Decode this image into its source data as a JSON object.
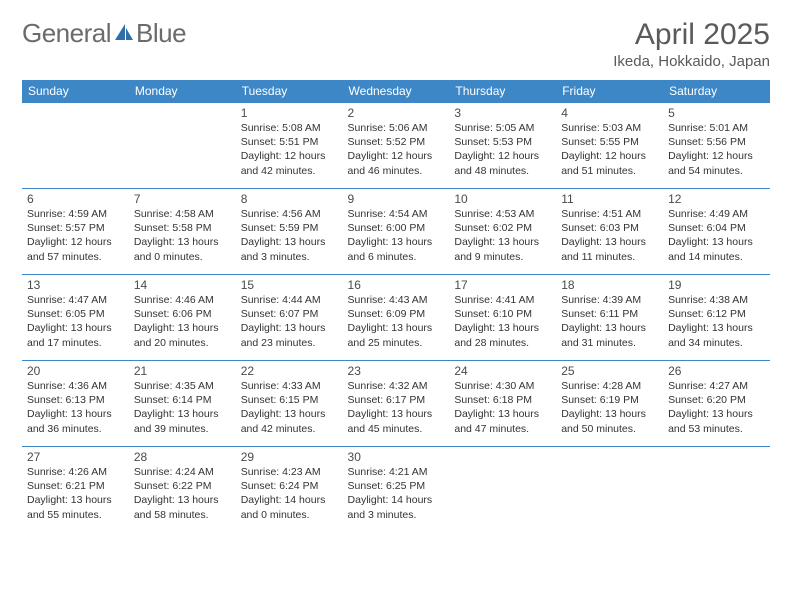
{
  "logo": {
    "text_a": "General",
    "text_b": "Blue"
  },
  "title": "April 2025",
  "location": "Ikeda, Hokkaido, Japan",
  "colors": {
    "header_bg": "#3d87c7",
    "header_text": "#ffffff",
    "row_border": "#3d87c7",
    "body_text": "#333333",
    "title_text": "#5a5a5a",
    "logo_text": "#6b6b6b",
    "sail_color": "#2f6fa8",
    "background": "#ffffff"
  },
  "typography": {
    "title_fontsize": 30,
    "location_fontsize": 15,
    "daynum_fontsize": 12,
    "cell_fontsize": 10.5,
    "header_fontsize": 12,
    "logo_fontsize": 26
  },
  "weekdays": [
    "Sunday",
    "Monday",
    "Tuesday",
    "Wednesday",
    "Thursday",
    "Friday",
    "Saturday"
  ],
  "weeks": [
    [
      null,
      null,
      {
        "n": "1",
        "sr": "Sunrise: 5:08 AM",
        "ss": "Sunset: 5:51 PM",
        "d1": "Daylight: 12 hours",
        "d2": "and 42 minutes."
      },
      {
        "n": "2",
        "sr": "Sunrise: 5:06 AM",
        "ss": "Sunset: 5:52 PM",
        "d1": "Daylight: 12 hours",
        "d2": "and 46 minutes."
      },
      {
        "n": "3",
        "sr": "Sunrise: 5:05 AM",
        "ss": "Sunset: 5:53 PM",
        "d1": "Daylight: 12 hours",
        "d2": "and 48 minutes."
      },
      {
        "n": "4",
        "sr": "Sunrise: 5:03 AM",
        "ss": "Sunset: 5:55 PM",
        "d1": "Daylight: 12 hours",
        "d2": "and 51 minutes."
      },
      {
        "n": "5",
        "sr": "Sunrise: 5:01 AM",
        "ss": "Sunset: 5:56 PM",
        "d1": "Daylight: 12 hours",
        "d2": "and 54 minutes."
      }
    ],
    [
      {
        "n": "6",
        "sr": "Sunrise: 4:59 AM",
        "ss": "Sunset: 5:57 PM",
        "d1": "Daylight: 12 hours",
        "d2": "and 57 minutes."
      },
      {
        "n": "7",
        "sr": "Sunrise: 4:58 AM",
        "ss": "Sunset: 5:58 PM",
        "d1": "Daylight: 13 hours",
        "d2": "and 0 minutes."
      },
      {
        "n": "8",
        "sr": "Sunrise: 4:56 AM",
        "ss": "Sunset: 5:59 PM",
        "d1": "Daylight: 13 hours",
        "d2": "and 3 minutes."
      },
      {
        "n": "9",
        "sr": "Sunrise: 4:54 AM",
        "ss": "Sunset: 6:00 PM",
        "d1": "Daylight: 13 hours",
        "d2": "and 6 minutes."
      },
      {
        "n": "10",
        "sr": "Sunrise: 4:53 AM",
        "ss": "Sunset: 6:02 PM",
        "d1": "Daylight: 13 hours",
        "d2": "and 9 minutes."
      },
      {
        "n": "11",
        "sr": "Sunrise: 4:51 AM",
        "ss": "Sunset: 6:03 PM",
        "d1": "Daylight: 13 hours",
        "d2": "and 11 minutes."
      },
      {
        "n": "12",
        "sr": "Sunrise: 4:49 AM",
        "ss": "Sunset: 6:04 PM",
        "d1": "Daylight: 13 hours",
        "d2": "and 14 minutes."
      }
    ],
    [
      {
        "n": "13",
        "sr": "Sunrise: 4:47 AM",
        "ss": "Sunset: 6:05 PM",
        "d1": "Daylight: 13 hours",
        "d2": "and 17 minutes."
      },
      {
        "n": "14",
        "sr": "Sunrise: 4:46 AM",
        "ss": "Sunset: 6:06 PM",
        "d1": "Daylight: 13 hours",
        "d2": "and 20 minutes."
      },
      {
        "n": "15",
        "sr": "Sunrise: 4:44 AM",
        "ss": "Sunset: 6:07 PM",
        "d1": "Daylight: 13 hours",
        "d2": "and 23 minutes."
      },
      {
        "n": "16",
        "sr": "Sunrise: 4:43 AM",
        "ss": "Sunset: 6:09 PM",
        "d1": "Daylight: 13 hours",
        "d2": "and 25 minutes."
      },
      {
        "n": "17",
        "sr": "Sunrise: 4:41 AM",
        "ss": "Sunset: 6:10 PM",
        "d1": "Daylight: 13 hours",
        "d2": "and 28 minutes."
      },
      {
        "n": "18",
        "sr": "Sunrise: 4:39 AM",
        "ss": "Sunset: 6:11 PM",
        "d1": "Daylight: 13 hours",
        "d2": "and 31 minutes."
      },
      {
        "n": "19",
        "sr": "Sunrise: 4:38 AM",
        "ss": "Sunset: 6:12 PM",
        "d1": "Daylight: 13 hours",
        "d2": "and 34 minutes."
      }
    ],
    [
      {
        "n": "20",
        "sr": "Sunrise: 4:36 AM",
        "ss": "Sunset: 6:13 PM",
        "d1": "Daylight: 13 hours",
        "d2": "and 36 minutes."
      },
      {
        "n": "21",
        "sr": "Sunrise: 4:35 AM",
        "ss": "Sunset: 6:14 PM",
        "d1": "Daylight: 13 hours",
        "d2": "and 39 minutes."
      },
      {
        "n": "22",
        "sr": "Sunrise: 4:33 AM",
        "ss": "Sunset: 6:15 PM",
        "d1": "Daylight: 13 hours",
        "d2": "and 42 minutes."
      },
      {
        "n": "23",
        "sr": "Sunrise: 4:32 AM",
        "ss": "Sunset: 6:17 PM",
        "d1": "Daylight: 13 hours",
        "d2": "and 45 minutes."
      },
      {
        "n": "24",
        "sr": "Sunrise: 4:30 AM",
        "ss": "Sunset: 6:18 PM",
        "d1": "Daylight: 13 hours",
        "d2": "and 47 minutes."
      },
      {
        "n": "25",
        "sr": "Sunrise: 4:28 AM",
        "ss": "Sunset: 6:19 PM",
        "d1": "Daylight: 13 hours",
        "d2": "and 50 minutes."
      },
      {
        "n": "26",
        "sr": "Sunrise: 4:27 AM",
        "ss": "Sunset: 6:20 PM",
        "d1": "Daylight: 13 hours",
        "d2": "and 53 minutes."
      }
    ],
    [
      {
        "n": "27",
        "sr": "Sunrise: 4:26 AM",
        "ss": "Sunset: 6:21 PM",
        "d1": "Daylight: 13 hours",
        "d2": "and 55 minutes."
      },
      {
        "n": "28",
        "sr": "Sunrise: 4:24 AM",
        "ss": "Sunset: 6:22 PM",
        "d1": "Daylight: 13 hours",
        "d2": "and 58 minutes."
      },
      {
        "n": "29",
        "sr": "Sunrise: 4:23 AM",
        "ss": "Sunset: 6:24 PM",
        "d1": "Daylight: 14 hours",
        "d2": "and 0 minutes."
      },
      {
        "n": "30",
        "sr": "Sunrise: 4:21 AM",
        "ss": "Sunset: 6:25 PM",
        "d1": "Daylight: 14 hours",
        "d2": "and 3 minutes."
      },
      null,
      null,
      null
    ]
  ]
}
